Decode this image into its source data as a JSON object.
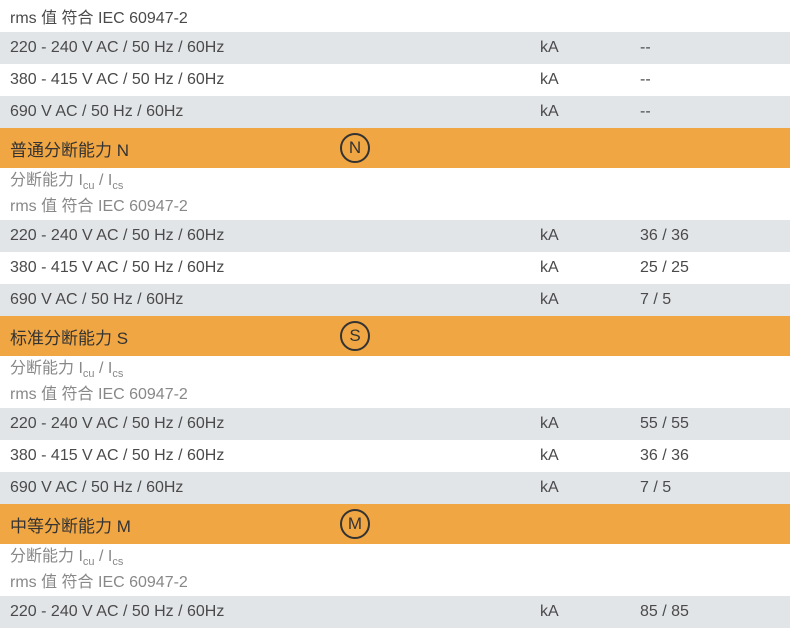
{
  "colors": {
    "header_bg": "#f0a643",
    "row_gray": "#e2e5e8",
    "row_white": "#ffffff",
    "text_main": "#4a4a4a",
    "text_sub": "#888888",
    "circle_border": "#333333"
  },
  "top": {
    "rms_line": "rms 值 符合 IEC 60947-2",
    "rows": [
      {
        "label": "220 - 240 V AC / 50 Hz / 60Hz",
        "unit": "kA",
        "value": "--"
      },
      {
        "label": "380 - 415 V AC / 50 Hz / 60Hz",
        "unit": "kA",
        "value": "--"
      },
      {
        "label": "690 V AC / 50 Hz / 60Hz",
        "unit": "kA",
        "value": "--"
      }
    ]
  },
  "sections": [
    {
      "title": "普通分断能力 N",
      "icon": "N",
      "sub_line1_prefix": "分断能力 I",
      "sub_line1_sub1": "cu",
      "sub_line1_mid": " / I",
      "sub_line1_sub2": "cs",
      "sub_line2": "rms 值 符合 IEC 60947-2",
      "rows": [
        {
          "label": "220 - 240 V AC / 50 Hz / 60Hz",
          "unit": "kA",
          "value": "36 / 36"
        },
        {
          "label": "380 - 415 V AC / 50 Hz / 60Hz",
          "unit": "kA",
          "value": "25 / 25"
        },
        {
          "label": "690 V AC / 50 Hz / 60Hz",
          "unit": "kA",
          "value": "7 / 5"
        }
      ]
    },
    {
      "title": "标准分断能力 S",
      "icon": "S",
      "sub_line1_prefix": "分断能力 I",
      "sub_line1_sub1": "cu",
      "sub_line1_mid": " / I",
      "sub_line1_sub2": "cs",
      "sub_line2": "rms 值 符合 IEC 60947-2",
      "rows": [
        {
          "label": "220 - 240 V AC / 50 Hz / 60Hz",
          "unit": "kA",
          "value": "55 / 55"
        },
        {
          "label": "380 - 415 V AC / 50 Hz / 60Hz",
          "unit": "kA",
          "value": "36 / 36"
        },
        {
          "label": "690 V AC / 50 Hz / 60Hz",
          "unit": "kA",
          "value": "7 / 5"
        }
      ]
    },
    {
      "title": "中等分断能力 M",
      "icon": "M",
      "sub_line1_prefix": "分断能力 I",
      "sub_line1_sub1": "cu",
      "sub_line1_mid": " / I",
      "sub_line1_sub2": "cs",
      "sub_line2": "rms 值 符合 IEC 60947-2",
      "rows": [
        {
          "label": "220 - 240 V AC / 50 Hz / 60Hz",
          "unit": "kA",
          "value": "85 / 85"
        }
      ]
    }
  ]
}
